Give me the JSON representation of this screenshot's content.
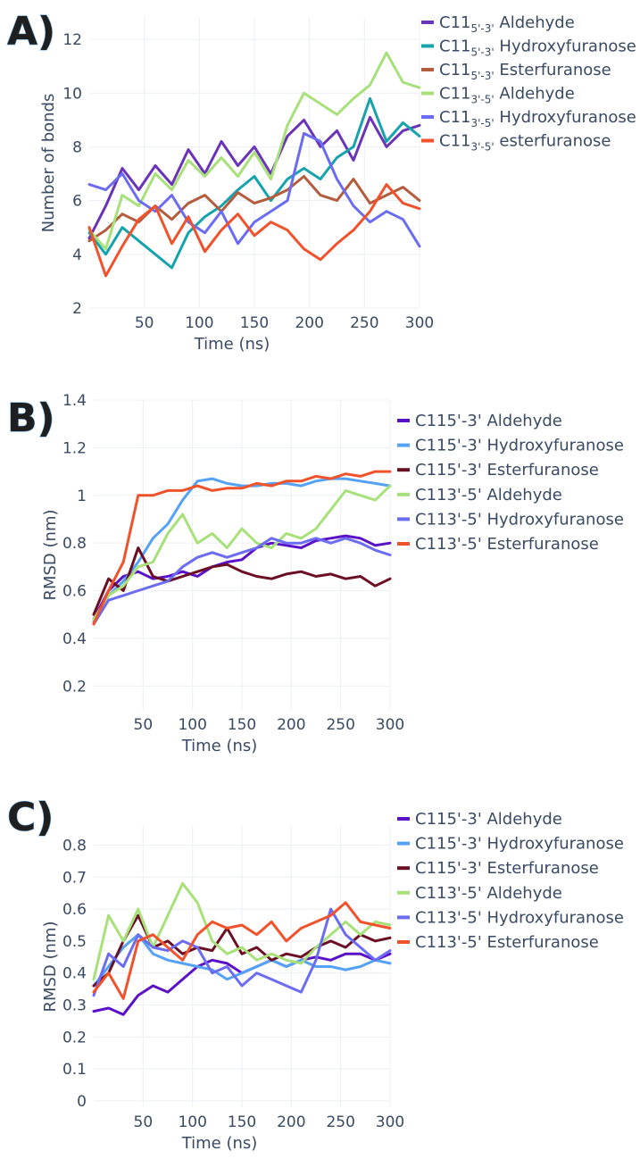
{
  "chart_data": [
    {
      "type": "line",
      "panel_label": "A)",
      "xlabel": "Time (ns)",
      "ylabel": "Number of bonds",
      "xlim": [
        0,
        300
      ],
      "ylim": [
        2,
        12.8
      ],
      "xticks": [
        50,
        100,
        150,
        200,
        250,
        300
      ],
      "yticks": [
        2,
        4,
        6,
        8,
        10,
        12
      ],
      "legend": [
        {
          "base": "C11",
          "sub": "5'-3'",
          "label": "Aldehyde",
          "color": "#6a33b8"
        },
        {
          "base": "C11",
          "sub": "5'-3'",
          "label": "Hydroxyfuranose",
          "color": "#17a3ac"
        },
        {
          "base": "C11",
          "sub": "5'-3'",
          "label": "Esterfuranose",
          "color": "#b35d3e"
        },
        {
          "base": "C11",
          "sub": "3'-5'",
          "label": "Aldehyde",
          "color": "#a8e07a"
        },
        {
          "base": "C11",
          "sub": "3'-5'",
          "label": "Hydroxyfuranose",
          "color": "#6c6cf2"
        },
        {
          "base": "C11",
          "sub": "3'-5'",
          "label": "esterfuranose",
          "color": "#f0522c"
        }
      ],
      "series": [
        {
          "name": "C11 5'-3' Aldehyde",
          "color": "#6a33b8",
          "x": [
            0,
            15,
            30,
            45,
            60,
            75,
            90,
            105,
            120,
            135,
            150,
            165,
            180,
            195,
            210,
            225,
            240,
            255,
            270,
            285,
            300
          ],
          "y": [
            4.6,
            5.8,
            7.2,
            6.4,
            7.3,
            6.6,
            7.9,
            7.0,
            8.2,
            7.3,
            8.0,
            7.0,
            8.4,
            9.0,
            8.0,
            8.6,
            7.5,
            9.1,
            8.0,
            8.6,
            8.8
          ]
        },
        {
          "name": "C11 5'-3' Hydroxyfuranose",
          "color": "#17a3ac",
          "x": [
            0,
            15,
            30,
            45,
            60,
            75,
            90,
            105,
            120,
            135,
            150,
            165,
            180,
            195,
            210,
            225,
            240,
            255,
            270,
            285,
            300
          ],
          "y": [
            4.8,
            4.0,
            5.0,
            4.5,
            4.0,
            3.5,
            4.8,
            5.4,
            5.8,
            6.4,
            6.9,
            6.0,
            6.8,
            7.2,
            6.8,
            7.6,
            8.0,
            9.8,
            8.2,
            8.9,
            8.4
          ]
        },
        {
          "name": "C11 5'-3' Esterfuranose",
          "color": "#b35d3e",
          "x": [
            0,
            15,
            30,
            45,
            60,
            75,
            90,
            105,
            120,
            135,
            150,
            165,
            180,
            195,
            210,
            225,
            240,
            255,
            270,
            285,
            300
          ],
          "y": [
            4.5,
            4.9,
            5.5,
            5.2,
            5.8,
            5.3,
            5.9,
            6.2,
            5.6,
            6.3,
            5.9,
            6.1,
            6.4,
            6.9,
            6.2,
            6.0,
            6.8,
            5.9,
            6.2,
            6.5,
            6.0
          ]
        },
        {
          "name": "C11 3'-5' Aldehyde",
          "color": "#a8e07a",
          "x": [
            0,
            15,
            30,
            45,
            60,
            75,
            90,
            105,
            120,
            135,
            150,
            165,
            180,
            195,
            210,
            225,
            240,
            255,
            270,
            285,
            300
          ],
          "y": [
            4.9,
            4.2,
            6.2,
            5.8,
            7.0,
            6.4,
            7.5,
            6.9,
            7.6,
            6.9,
            7.8,
            6.8,
            8.8,
            10.0,
            9.6,
            9.2,
            9.8,
            10.3,
            11.5,
            10.4,
            10.2
          ]
        },
        {
          "name": "C11 3'-5' Hydroxyfuranose",
          "color": "#6c6cf2",
          "x": [
            0,
            15,
            30,
            45,
            60,
            75,
            90,
            105,
            120,
            135,
            150,
            165,
            180,
            195,
            210,
            225,
            240,
            255,
            270,
            285,
            300
          ],
          "y": [
            6.6,
            6.4,
            7.0,
            6.0,
            5.6,
            6.2,
            5.2,
            4.8,
            5.6,
            4.4,
            5.2,
            5.6,
            6.0,
            8.5,
            8.2,
            6.8,
            5.8,
            5.2,
            5.6,
            5.3,
            4.3
          ]
        },
        {
          "name": "C11 3'-5' esterfuranose",
          "color": "#f0522c",
          "x": [
            0,
            15,
            30,
            45,
            60,
            75,
            90,
            105,
            120,
            135,
            150,
            165,
            180,
            195,
            210,
            225,
            240,
            255,
            270,
            285,
            300
          ],
          "y": [
            5.0,
            3.2,
            4.3,
            5.3,
            5.8,
            4.4,
            5.4,
            4.1,
            4.9,
            5.5,
            4.7,
            5.2,
            4.9,
            4.2,
            3.8,
            4.4,
            4.9,
            5.6,
            6.6,
            5.9,
            5.7
          ]
        }
      ]
    },
    {
      "type": "line",
      "panel_label": "B)",
      "xlabel": "Time (ns)",
      "ylabel": "RMSD (nm)",
      "xlim": [
        0,
        300
      ],
      "ylim": [
        0.1,
        1.4
      ],
      "xticks": [
        50,
        100,
        150,
        200,
        250,
        300
      ],
      "yticks": [
        0.2,
        0.4,
        0.6,
        0.8,
        1,
        1.2,
        1.4
      ],
      "legend": [
        {
          "label": "C115'-3' Aldehyde",
          "color": "#5a12c9"
        },
        {
          "label": "C115'-3' Hydroxyfuranose",
          "color": "#55a2f5"
        },
        {
          "label": "C115'-3' Esterfuranose",
          "color": "#6b0f24"
        },
        {
          "label": "C113'-5' Aldehyde",
          "color": "#a8e07a"
        },
        {
          "label": "C113'-5' Hydroxyfuranose",
          "color": "#6c6cf2"
        },
        {
          "label": "C113'-5' Esterfuranose",
          "color": "#f0522c"
        }
      ],
      "series": [
        {
          "name": "C115'-3' Aldehyde",
          "color": "#5a12c9",
          "x": [
            0,
            15,
            30,
            45,
            60,
            75,
            90,
            105,
            120,
            135,
            150,
            165,
            180,
            195,
            210,
            225,
            240,
            255,
            270,
            285,
            300
          ],
          "y": [
            0.48,
            0.6,
            0.66,
            0.68,
            0.65,
            0.66,
            0.68,
            0.66,
            0.7,
            0.72,
            0.73,
            0.78,
            0.8,
            0.79,
            0.78,
            0.81,
            0.82,
            0.83,
            0.82,
            0.79,
            0.8
          ]
        },
        {
          "name": "C115'-3' Hydroxyfuranose",
          "color": "#55a2f5",
          "x": [
            0,
            15,
            30,
            45,
            60,
            75,
            90,
            105,
            120,
            135,
            150,
            165,
            180,
            195,
            210,
            225,
            240,
            255,
            270,
            285,
            300
          ],
          "y": [
            0.47,
            0.58,
            0.64,
            0.72,
            0.82,
            0.88,
            0.98,
            1.06,
            1.07,
            1.05,
            1.04,
            1.04,
            1.05,
            1.05,
            1.04,
            1.06,
            1.07,
            1.07,
            1.06,
            1.05,
            1.04
          ]
        },
        {
          "name": "C115'-3' Esterfuranose",
          "color": "#6b0f24",
          "x": [
            0,
            15,
            30,
            45,
            60,
            75,
            90,
            105,
            120,
            135,
            150,
            165,
            180,
            195,
            210,
            225,
            240,
            255,
            270,
            285,
            300
          ],
          "y": [
            0.5,
            0.65,
            0.6,
            0.78,
            0.66,
            0.64,
            0.66,
            0.68,
            0.7,
            0.71,
            0.68,
            0.66,
            0.65,
            0.67,
            0.68,
            0.66,
            0.67,
            0.65,
            0.66,
            0.62,
            0.65
          ]
        },
        {
          "name": "C113'-5' Aldehyde",
          "color": "#a8e07a",
          "x": [
            0,
            15,
            30,
            45,
            60,
            75,
            90,
            105,
            120,
            135,
            150,
            165,
            180,
            195,
            210,
            225,
            240,
            255,
            270,
            285,
            300
          ],
          "y": [
            0.48,
            0.58,
            0.62,
            0.7,
            0.72,
            0.84,
            0.92,
            0.8,
            0.84,
            0.78,
            0.86,
            0.8,
            0.78,
            0.84,
            0.82,
            0.86,
            0.94,
            1.02,
            1.0,
            0.98,
            1.04
          ]
        },
        {
          "name": "C113'-5' Hydroxyfuranose",
          "color": "#6c6cf2",
          "x": [
            0,
            15,
            30,
            45,
            60,
            75,
            90,
            105,
            120,
            135,
            150,
            165,
            180,
            195,
            210,
            225,
            240,
            255,
            270,
            285,
            300
          ],
          "y": [
            0.46,
            0.56,
            0.58,
            0.6,
            0.62,
            0.64,
            0.7,
            0.74,
            0.76,
            0.74,
            0.76,
            0.78,
            0.82,
            0.8,
            0.8,
            0.82,
            0.8,
            0.82,
            0.8,
            0.77,
            0.75
          ]
        },
        {
          "name": "C113'-5' Esterfuranose",
          "color": "#f0522c",
          "x": [
            0,
            15,
            30,
            45,
            60,
            75,
            90,
            105,
            120,
            135,
            150,
            165,
            180,
            195,
            210,
            225,
            240,
            255,
            270,
            285,
            300
          ],
          "y": [
            0.46,
            0.6,
            0.72,
            1.0,
            1.0,
            1.02,
            1.02,
            1.04,
            1.02,
            1.03,
            1.03,
            1.05,
            1.04,
            1.06,
            1.06,
            1.08,
            1.07,
            1.09,
            1.08,
            1.1,
            1.1
          ]
        }
      ]
    },
    {
      "type": "line",
      "panel_label": "C)",
      "xlabel": "Time (ns)",
      "ylabel": "RMSD (nm)",
      "xlim": [
        0,
        300
      ],
      "ylim": [
        -0.02,
        0.86
      ],
      "xticks": [
        50,
        100,
        150,
        200,
        250,
        300
      ],
      "yticks": [
        0,
        0.1,
        0.2,
        0.3,
        0.4,
        0.5,
        0.6,
        0.7,
        0.8
      ],
      "legend": [
        {
          "label": "C115'-3' Aldehyde",
          "color": "#5a12c9"
        },
        {
          "label": "C115'-3' Hydroxyfuranose",
          "color": "#55a2f5"
        },
        {
          "label": "C115'-3' Esterfuranose",
          "color": "#6b0f24"
        },
        {
          "label": "C113'-5' Aldehyde",
          "color": "#a8e07a"
        },
        {
          "label": "C113'-5' Hydroxyfuranose",
          "color": "#6c6cf2"
        },
        {
          "label": "C113'-5' Esterfuranose",
          "color": "#f0522c"
        }
      ],
      "series": [
        {
          "name": "C115'-3' Aldehyde",
          "color": "#5a12c9",
          "x": [
            0,
            15,
            30,
            45,
            60,
            75,
            90,
            105,
            120,
            135,
            150,
            165,
            180,
            195,
            210,
            225,
            240,
            255,
            270,
            285,
            300
          ],
          "y": [
            0.28,
            0.29,
            0.27,
            0.33,
            0.36,
            0.34,
            0.38,
            0.42,
            0.44,
            0.43,
            0.4,
            0.42,
            0.44,
            0.42,
            0.44,
            0.45,
            0.44,
            0.46,
            0.46,
            0.44,
            0.46
          ]
        },
        {
          "name": "C115'-3' Hydroxyfuranose",
          "color": "#55a2f5",
          "x": [
            0,
            15,
            30,
            45,
            60,
            75,
            90,
            105,
            120,
            135,
            150,
            165,
            180,
            195,
            210,
            225,
            240,
            255,
            270,
            285,
            300
          ],
          "y": [
            0.36,
            0.42,
            0.48,
            0.52,
            0.46,
            0.44,
            0.43,
            0.42,
            0.41,
            0.38,
            0.4,
            0.42,
            0.44,
            0.42,
            0.44,
            0.42,
            0.42,
            0.41,
            0.42,
            0.44,
            0.43
          ]
        },
        {
          "name": "C115'-3' Esterfuranose",
          "color": "#6b0f24",
          "x": [
            0,
            15,
            30,
            45,
            60,
            75,
            90,
            105,
            120,
            135,
            150,
            165,
            180,
            195,
            210,
            225,
            240,
            255,
            270,
            285,
            300
          ],
          "y": [
            0.36,
            0.4,
            0.5,
            0.58,
            0.48,
            0.5,
            0.46,
            0.48,
            0.47,
            0.54,
            0.46,
            0.48,
            0.44,
            0.46,
            0.45,
            0.48,
            0.5,
            0.48,
            0.52,
            0.5,
            0.51
          ]
        },
        {
          "name": "C113'-5' Aldehyde",
          "color": "#a8e07a",
          "x": [
            0,
            15,
            30,
            45,
            60,
            75,
            90,
            105,
            120,
            135,
            150,
            165,
            180,
            195,
            210,
            225,
            240,
            255,
            270,
            285,
            300
          ],
          "y": [
            0.38,
            0.58,
            0.5,
            0.6,
            0.48,
            0.58,
            0.68,
            0.62,
            0.5,
            0.46,
            0.48,
            0.44,
            0.46,
            0.44,
            0.43,
            0.48,
            0.52,
            0.56,
            0.52,
            0.56,
            0.55
          ]
        },
        {
          "name": "C113'-5' Hydroxyfuranose",
          "color": "#6c6cf2",
          "x": [
            0,
            15,
            30,
            45,
            60,
            75,
            90,
            105,
            120,
            135,
            150,
            165,
            180,
            195,
            210,
            225,
            240,
            255,
            270,
            285,
            300
          ],
          "y": [
            0.33,
            0.46,
            0.42,
            0.52,
            0.48,
            0.47,
            0.5,
            0.48,
            0.4,
            0.42,
            0.36,
            0.4,
            0.38,
            0.36,
            0.34,
            0.44,
            0.6,
            0.52,
            0.48,
            0.44,
            0.47
          ]
        },
        {
          "name": "C113'-5' Esterfuranose",
          "color": "#f0522c",
          "x": [
            0,
            15,
            30,
            45,
            60,
            75,
            90,
            105,
            120,
            135,
            150,
            165,
            180,
            195,
            210,
            225,
            240,
            255,
            270,
            285,
            300
          ],
          "y": [
            0.34,
            0.4,
            0.32,
            0.5,
            0.52,
            0.48,
            0.44,
            0.52,
            0.56,
            0.54,
            0.55,
            0.52,
            0.56,
            0.5,
            0.54,
            0.56,
            0.58,
            0.62,
            0.56,
            0.55,
            0.54
          ]
        }
      ]
    }
  ]
}
